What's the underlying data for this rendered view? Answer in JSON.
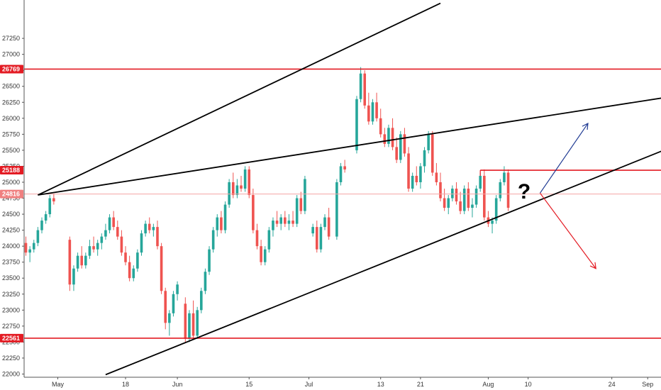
{
  "chart_data": {
    "type": "candlestick",
    "y_axis": {
      "position": "left",
      "range": [
        21950,
        27850
      ],
      "tick_labels": [
        "22000",
        "22250",
        "22500",
        "22750",
        "23000",
        "23250",
        "23500",
        "23750",
        "24000",
        "24250",
        "24500",
        "24750",
        "25000",
        "25250",
        "25500",
        "25750",
        "26000",
        "26250",
        "26500",
        "26750",
        "27000",
        "27250"
      ]
    },
    "x_axis": {
      "tick_labels": [
        "May",
        "18",
        "Jun",
        "15",
        "Jul",
        "13",
        "21",
        "Aug",
        "10",
        "24",
        "Sep"
      ],
      "tick_days": [
        4,
        21,
        34,
        52,
        67,
        85,
        95,
        112,
        122,
        143,
        152
      ]
    },
    "price_tags": [
      {
        "label": "26769",
        "value": 26769,
        "color": "#e31b23"
      },
      {
        "label": "25188",
        "value": 25188,
        "color": "#e31b23"
      },
      {
        "label": "24816",
        "value": 24816,
        "color": "#f08080"
      },
      {
        "label": "22561",
        "value": 22561,
        "color": "#e31b23"
      }
    ],
    "horizontal_levels": [
      {
        "value": 26769,
        "color": "#e31b23"
      },
      {
        "value": 22561,
        "color": "#e31b23"
      },
      {
        "value": 24816,
        "color": "#f4a6a6"
      }
    ],
    "segment_levels": [
      {
        "value": 25188,
        "from_day": 110,
        "color": "#e31b23"
      }
    ],
    "trend_lines": [
      {
        "from": [
          -1,
          24800
        ],
        "to": [
          100,
          27800
        ],
        "color": "#000000"
      },
      {
        "from": [
          -1,
          24800
        ],
        "to": [
          160,
          26360
        ],
        "color": "#000000"
      },
      {
        "from": [
          16,
          21990
        ],
        "to": [
          160,
          25600
        ],
        "color": "#000000"
      }
    ],
    "arrows": [
      {
        "from": [
          125,
          24830
        ],
        "to": [
          137,
          25920
        ],
        "color": "#1f3a93"
      },
      {
        "from": [
          125,
          24830
        ],
        "to": [
          139,
          23650
        ],
        "color": "#e31b23"
      }
    ],
    "annotation": {
      "text": "?",
      "at": [
        121,
        24830
      ]
    },
    "up_color": "#26a69a",
    "down_color": "#ef5350",
    "candles": [
      [
        -4,
        24050,
        24150,
        23850,
        23900
      ],
      [
        -3,
        23900,
        24000,
        23750,
        23950
      ],
      [
        -2,
        23950,
        24100,
        23900,
        24050
      ],
      [
        -1,
        24050,
        24300,
        24000,
        24250
      ],
      [
        0,
        24250,
        24450,
        24200,
        24400
      ],
      [
        1,
        24400,
        24550,
        24350,
        24500
      ],
      [
        2,
        24500,
        24800,
        24450,
        24750
      ],
      [
        3,
        24750,
        24820,
        24650,
        24700
      ],
      [
        7,
        24100,
        24150,
        23300,
        23400
      ],
      [
        8,
        23400,
        23700,
        23300,
        23650
      ],
      [
        9,
        23650,
        23900,
        23600,
        23850
      ],
      [
        10,
        23850,
        24000,
        23650,
        23700
      ],
      [
        11,
        23700,
        23900,
        23650,
        23850
      ],
      [
        12,
        23850,
        24100,
        23800,
        24000
      ],
      [
        13,
        24000,
        24150,
        23900,
        23950
      ],
      [
        14,
        23950,
        24100,
        23850,
        24050
      ],
      [
        15,
        24050,
        24200,
        23950,
        24150
      ],
      [
        16,
        24150,
        24350,
        24100,
        24250
      ],
      [
        17,
        24250,
        24500,
        24200,
        24450
      ],
      [
        18,
        24450,
        24550,
        24250,
        24300
      ],
      [
        19,
        24300,
        24400,
        24100,
        24150
      ],
      [
        20,
        24150,
        24250,
        23850,
        23900
      ],
      [
        21,
        23900,
        24000,
        23700,
        23750
      ],
      [
        22,
        23750,
        23850,
        23450,
        23500
      ],
      [
        23,
        23500,
        23700,
        23450,
        23650
      ],
      [
        24,
        23650,
        23950,
        23600,
        23900
      ],
      [
        25,
        23900,
        24250,
        23850,
        24200
      ],
      [
        26,
        24200,
        24400,
        24150,
        24350
      ],
      [
        27,
        24350,
        24450,
        24200,
        24250
      ],
      [
        28,
        24250,
        24350,
        24150,
        24300
      ],
      [
        29,
        24300,
        24400,
        23950,
        24000
      ],
      [
        30,
        24000,
        24050,
        23250,
        23300
      ],
      [
        31,
        23300,
        23350,
        22700,
        22800
      ],
      [
        32,
        22800,
        23000,
        22600,
        22950
      ],
      [
        33,
        22950,
        23300,
        22900,
        23250
      ],
      [
        34,
        23250,
        23450,
        23150,
        23400
      ],
      [
        36,
        23100,
        23200,
        22500,
        22550
      ],
      [
        37,
        22550,
        23000,
        22500,
        22950
      ],
      [
        38,
        22950,
        23150,
        22550,
        22600
      ],
      [
        39,
        22600,
        23050,
        22550,
        23000
      ],
      [
        40,
        23000,
        23350,
        22950,
        23300
      ],
      [
        41,
        23300,
        23650,
        23250,
        23600
      ],
      [
        42,
        23600,
        24000,
        23550,
        23950
      ],
      [
        43,
        23950,
        24300,
        23900,
        24250
      ],
      [
        44,
        24250,
        24500,
        24150,
        24450
      ],
      [
        45,
        24450,
        24550,
        24200,
        24250
      ],
      [
        46,
        24250,
        24700,
        24200,
        24650
      ],
      [
        47,
        24650,
        25050,
        24600,
        25000
      ],
      [
        48,
        25000,
        25150,
        24750,
        24800
      ],
      [
        49,
        24800,
        25050,
        24750,
        24950
      ],
      [
        50,
        24950,
        25100,
        24850,
        24900
      ],
      [
        51,
        24900,
        25250,
        24850,
        25200
      ],
      [
        52,
        25200,
        25250,
        24750,
        24800
      ],
      [
        53,
        24800,
        24900,
        24200,
        24250
      ],
      [
        54,
        24250,
        24350,
        23950,
        24000
      ],
      [
        55,
        24000,
        24100,
        23700,
        23750
      ],
      [
        56,
        23750,
        24000,
        23700,
        23950
      ],
      [
        57,
        23950,
        24300,
        23900,
        24250
      ],
      [
        58,
        24250,
        24450,
        24150,
        24400
      ],
      [
        59,
        24400,
        24550,
        24300,
        24350
      ],
      [
        60,
        24350,
        24500,
        24250,
        24450
      ],
      [
        61,
        24450,
        24550,
        24300,
        24350
      ],
      [
        62,
        24350,
        24500,
        24250,
        24400
      ],
      [
        63,
        24400,
        24550,
        24300,
        24350
      ],
      [
        64,
        24350,
        24800,
        24300,
        24750
      ],
      [
        65,
        24750,
        24850,
        24500,
        24550
      ],
      [
        66,
        24550,
        25100,
        24500,
        25050
      ],
      [
        68,
        24200,
        24350,
        24150,
        24300
      ],
      [
        69,
        24300,
        24400,
        23900,
        23950
      ],
      [
        70,
        23950,
        24350,
        23900,
        24300
      ],
      [
        71,
        24300,
        24500,
        24250,
        24450
      ],
      [
        72,
        24450,
        24600,
        24100,
        24150
      ],
      [
        74,
        24150,
        25050,
        24100,
        25000
      ],
      [
        75,
        25000,
        25300,
        24950,
        25250
      ],
      [
        76,
        25250,
        25350,
        25150,
        25200
      ],
      [
        79,
        25500,
        26350,
        25450,
        26300
      ],
      [
        80,
        26300,
        26800,
        26250,
        26700
      ],
      [
        81,
        26700,
        26750,
        26150,
        26200
      ],
      [
        82,
        26200,
        26400,
        25900,
        25950
      ],
      [
        83,
        25950,
        26300,
        25900,
        26250
      ],
      [
        84,
        26250,
        26400,
        25950,
        26000
      ],
      [
        85,
        26000,
        26150,
        25700,
        25750
      ],
      [
        86,
        25750,
        25850,
        25550,
        25600
      ],
      [
        87,
        25600,
        25900,
        25550,
        25850
      ],
      [
        88,
        25850,
        26000,
        25500,
        25550
      ],
      [
        89,
        25550,
        25700,
        25300,
        25350
      ],
      [
        90,
        25350,
        25800,
        25300,
        25750
      ],
      [
        91,
        25750,
        25850,
        25400,
        25450
      ],
      [
        92,
        25450,
        25550,
        24850,
        24900
      ],
      [
        93,
        24900,
        25150,
        24850,
        25100
      ],
      [
        94,
        25100,
        25250,
        24950,
        25000
      ],
      [
        95,
        25000,
        25300,
        24900,
        25250
      ],
      [
        96,
        25250,
        25550,
        25150,
        25500
      ],
      [
        97,
        25500,
        25800,
        25450,
        25750
      ],
      [
        98,
        25750,
        25800,
        25100,
        25150
      ],
      [
        99,
        25150,
        25300,
        24950,
        25000
      ],
      [
        100,
        25000,
        25150,
        24700,
        24750
      ],
      [
        101,
        24750,
        24900,
        24550,
        24600
      ],
      [
        102,
        24600,
        24800,
        24500,
        24750
      ],
      [
        103,
        24750,
        24950,
        24700,
        24900
      ],
      [
        104,
        24900,
        25000,
        24650,
        24700
      ],
      [
        105,
        24700,
        24850,
        24500,
        24550
      ],
      [
        106,
        24550,
        24950,
        24500,
        24900
      ],
      [
        107,
        24900,
        25000,
        24550,
        24600
      ],
      [
        108,
        24600,
        24750,
        24450,
        24650
      ],
      [
        109,
        24650,
        24950,
        24600,
        24900
      ],
      [
        110,
        24900,
        25150,
        24850,
        25100
      ],
      [
        111,
        25100,
        25200,
        24400,
        24450
      ],
      [
        112,
        24450,
        24550,
        24300,
        24350
      ],
      [
        113,
        24350,
        24450,
        24200,
        24400
      ],
      [
        114,
        24400,
        24800,
        24350,
        24750
      ],
      [
        115,
        24750,
        25050,
        24700,
        25000
      ],
      [
        116,
        25000,
        25250,
        24950,
        25150
      ],
      [
        117,
        25150,
        25200,
        24550,
        24600
      ]
    ]
  }
}
